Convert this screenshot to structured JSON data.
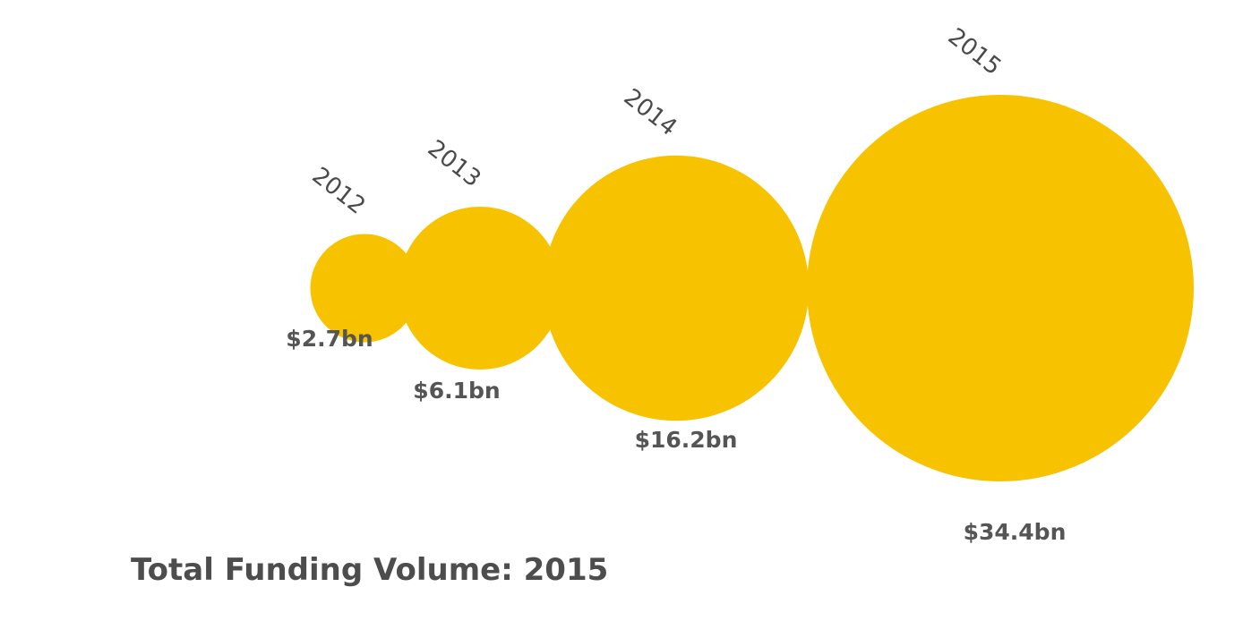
{
  "chart_data": {
    "type": "bubble",
    "title": "Total Funding Volume: 2015",
    "categories": [
      "2012",
      "2013",
      "2014",
      "2015"
    ],
    "values": [
      2.7,
      6.1,
      16.2,
      34.4
    ],
    "value_labels": [
      "$2.7bn",
      "$6.1bn",
      "$16.2bn",
      "$34.4bn"
    ],
    "legend": "none",
    "grid": false
  },
  "colors": {
    "bubble": "#F7C200",
    "connector": "#eeeeee",
    "year_text": "#4a4a4a",
    "value_text": "#555555",
    "title_text": "#4d4d4d"
  }
}
